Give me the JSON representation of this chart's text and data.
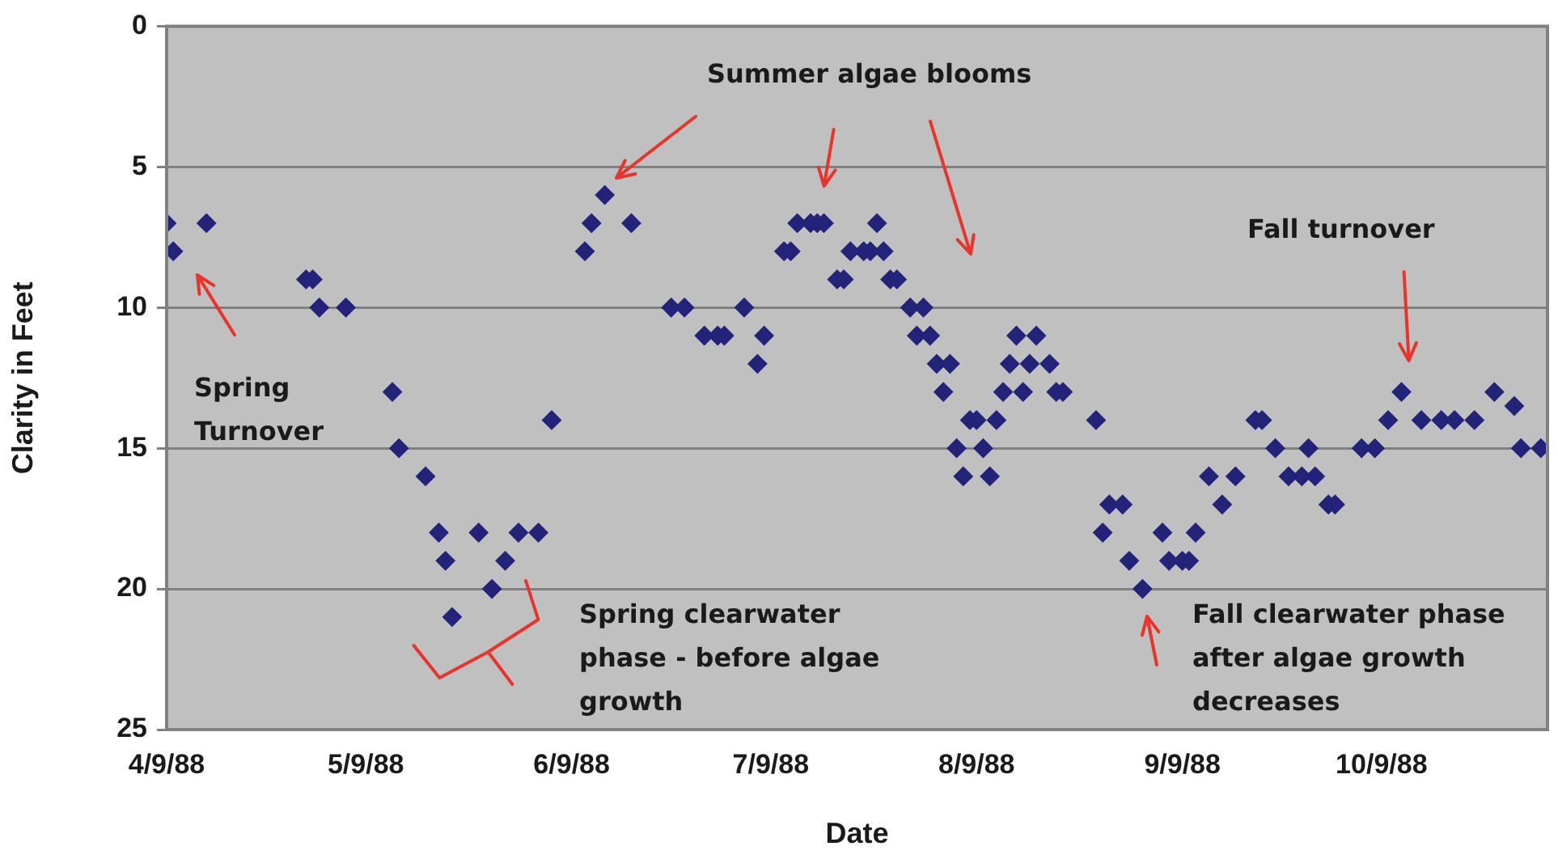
{
  "chart_data": {
    "type": "scatter",
    "xlabel": "Date",
    "ylabel": "Clarity in Feet",
    "x": [
      "1988-04-09",
      "1988-04-10",
      "1988-04-15",
      "1988-04-30",
      "1988-05-01",
      "1988-05-02",
      "1988-05-06",
      "1988-05-13",
      "1988-05-14",
      "1988-05-18",
      "1988-05-20",
      "1988-05-21",
      "1988-05-22",
      "1988-05-26",
      "1988-05-28",
      "1988-05-30",
      "1988-06-01",
      "1988-06-04",
      "1988-06-06",
      "1988-06-11",
      "1988-06-12",
      "1988-06-14",
      "1988-06-18",
      "1988-06-24",
      "1988-06-26",
      "1988-06-29",
      "1988-07-01",
      "1988-07-02",
      "1988-07-05",
      "1988-07-07",
      "1988-07-08",
      "1988-07-11",
      "1988-07-12",
      "1988-07-13",
      "1988-07-15",
      "1988-07-16",
      "1988-07-17",
      "1988-07-19",
      "1988-07-20",
      "1988-07-21",
      "1988-07-23",
      "1988-07-24",
      "1988-07-25",
      "1988-07-26",
      "1988-07-27",
      "1988-07-28",
      "1988-07-30",
      "1988-07-31",
      "1988-08-01",
      "1988-08-02",
      "1988-08-03",
      "1988-08-04",
      "1988-08-05",
      "1988-08-06",
      "1988-08-07",
      "1988-08-08",
      "1988-08-09",
      "1988-08-10",
      "1988-08-11",
      "1988-08-12",
      "1988-08-13",
      "1988-08-14",
      "1988-08-15",
      "1988-08-16",
      "1988-08-17",
      "1988-08-18",
      "1988-08-20",
      "1988-08-21",
      "1988-08-22",
      "1988-08-27",
      "1988-08-28",
      "1988-08-29",
      "1988-08-31",
      "1988-09-01",
      "1988-09-03",
      "1988-09-06",
      "1988-09-07",
      "1988-09-09",
      "1988-09-10",
      "1988-09-11",
      "1988-09-13",
      "1988-09-15",
      "1988-09-17",
      "1988-09-20",
      "1988-09-21",
      "1988-09-23",
      "1988-09-25",
      "1988-09-27",
      "1988-09-28",
      "1988-09-29",
      "1988-10-01",
      "1988-10-02",
      "1988-10-06",
      "1988-10-08",
      "1988-10-10",
      "1988-10-12",
      "1988-10-15",
      "1988-10-18",
      "1988-10-20",
      "1988-10-23",
      "1988-10-26",
      "1988-10-29",
      "1988-10-30",
      "1988-11-02"
    ],
    "series": [
      {
        "color": "#23237a",
        "values": [
          7,
          8,
          7,
          9,
          9,
          10,
          10,
          13,
          15,
          16,
          18,
          19,
          21,
          18,
          20,
          19,
          18,
          18,
          14,
          8,
          7,
          6,
          7,
          10,
          10,
          11,
          11,
          11,
          10,
          12,
          11,
          8,
          8,
          7,
          7,
          7,
          7,
          9,
          9,
          8,
          8,
          8,
          7,
          8,
          9,
          9,
          10,
          11,
          10,
          11,
          12,
          13,
          12,
          15,
          16,
          14,
          14,
          15,
          16,
          14,
          13,
          12,
          11,
          13,
          12,
          11,
          12,
          13,
          13,
          14,
          18,
          17,
          17,
          19,
          20,
          18,
          19,
          19,
          19,
          18,
          16,
          17,
          16,
          14,
          14,
          15,
          16,
          16,
          15,
          16,
          17,
          17,
          15,
          15,
          14,
          13,
          14,
          14,
          14,
          14,
          13,
          13.5,
          15,
          15
        ]
      }
    ],
    "xlim": [
      "1988-04-09",
      "1988-11-03"
    ],
    "xticks": [
      {
        "value": "1988-04-09",
        "label": "4/9/88"
      },
      {
        "value": "1988-05-09",
        "label": "5/9/88"
      },
      {
        "value": "1988-06-09",
        "label": "6/9/88"
      },
      {
        "value": "1988-07-09",
        "label": "7/9/88"
      },
      {
        "value": "1988-08-09",
        "label": "8/9/88"
      },
      {
        "value": "1988-09-09",
        "label": "9/9/88"
      },
      {
        "value": "1988-10-09",
        "label": "10/9/88"
      }
    ],
    "ylim": [
      25,
      0
    ],
    "yticks": [
      0,
      5,
      10,
      15,
      20,
      25
    ],
    "grid": "y",
    "legend": false,
    "marker": "diamond",
    "annotations": [
      "Summer algae blooms",
      "Spring Turnover",
      "Spring clearwater phase - before algae growth",
      "Fall turnover",
      "Fall clearwater phase after algae growth decreases"
    ]
  }
}
